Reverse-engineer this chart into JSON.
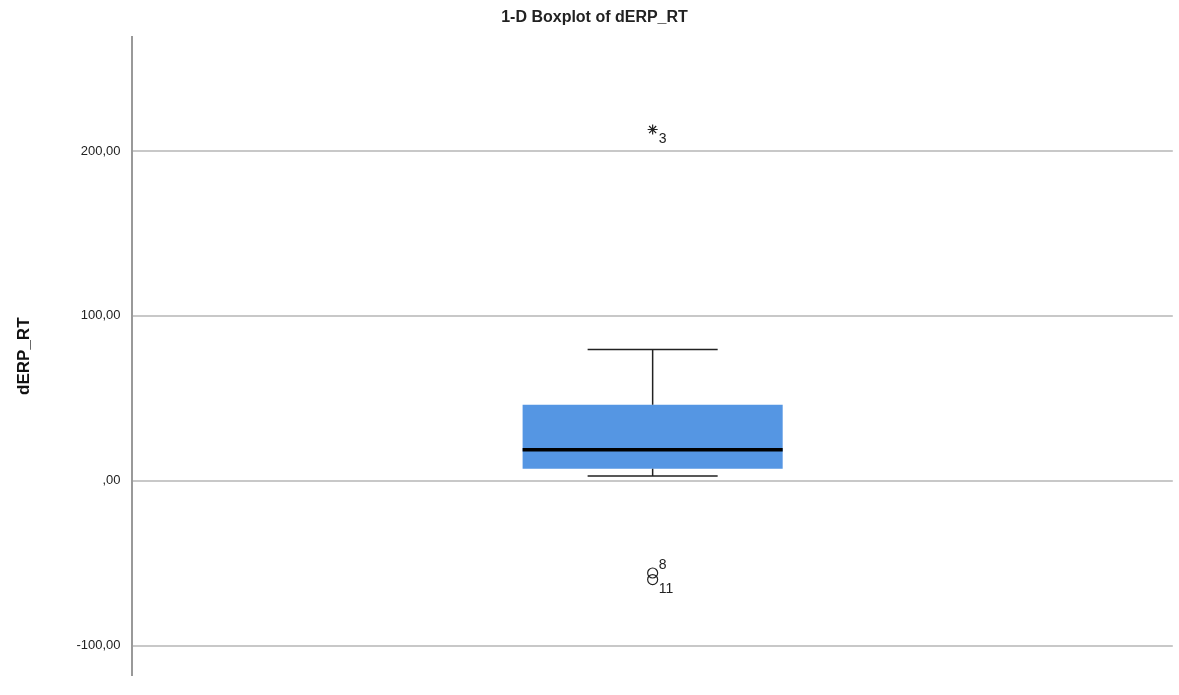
{
  "chart_data": {
    "type": "box",
    "title": "1-D Boxplot of dERP_RT",
    "ylabel": "dERP_RT",
    "categories": [
      null
    ],
    "boxes": [
      {
        "low": 2.8,
        "q1": 7.3,
        "median": 18.7,
        "q3": 46,
        "high": 79.6,
        "outliers": [
          213,
          -56,
          -60
        ]
      }
    ],
    "color": "#5596e3",
    "ylim": [
      -118,
      269
    ],
    "yticks": [
      {
        "value": -100,
        "label": "-100,00"
      },
      {
        "value": 0,
        "label": ",00"
      },
      {
        "value": 100,
        "label": "100,00"
      },
      {
        "value": 200,
        "label": "200,00"
      }
    ],
    "annotations": [
      "3",
      "8",
      "11"
    ],
    "grid": "y",
    "tick_labels": "y",
    "legend": false
  }
}
